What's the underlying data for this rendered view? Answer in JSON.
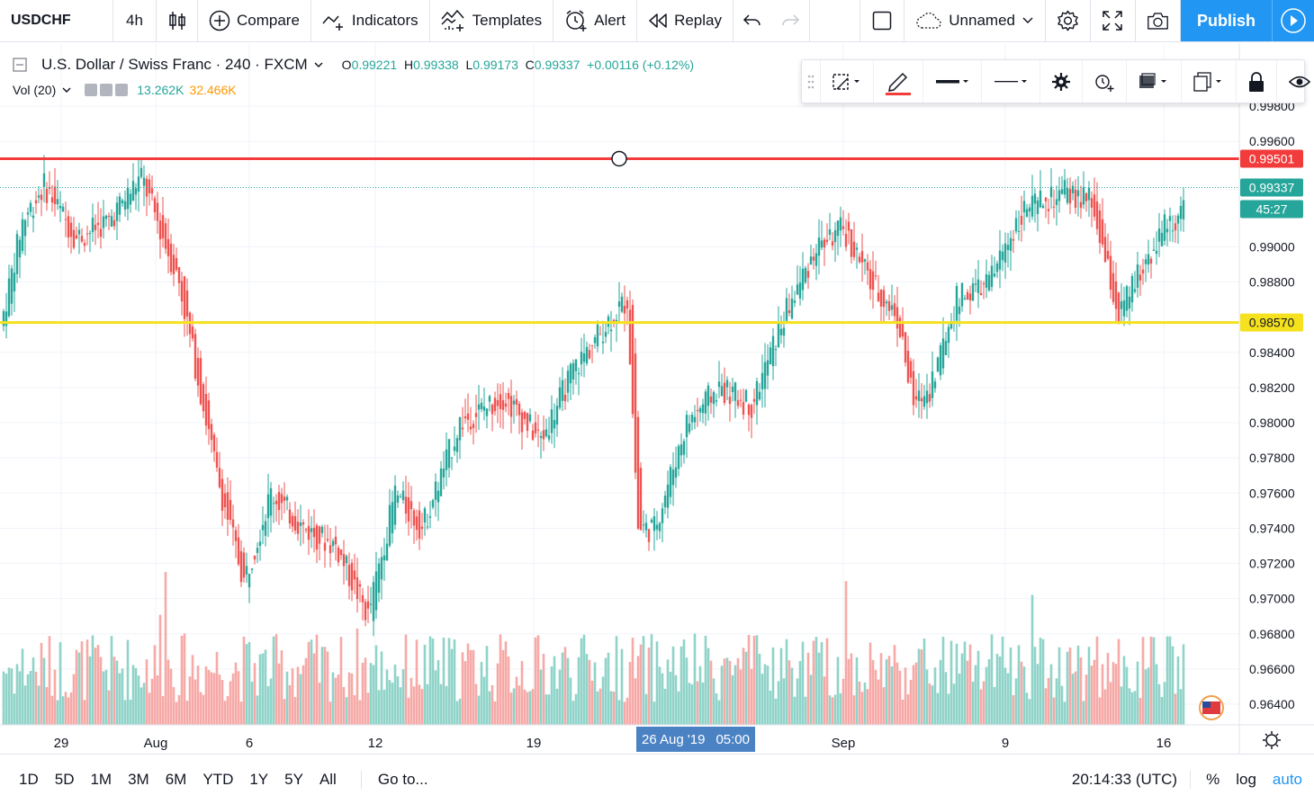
{
  "toolbar": {
    "symbol": "USDCHF",
    "interval": "4h",
    "compare": "Compare",
    "indicators": "Indicators",
    "templates": "Templates",
    "alert": "Alert",
    "replay": "Replay",
    "layout_name": "Unnamed",
    "publish": "Publish"
  },
  "legend": {
    "title": "U.S. Dollar / Swiss Franc · 240 · FXCM",
    "open": "0.99221",
    "high": "0.99338",
    "low": "0.99173",
    "close": "0.99337",
    "change": "+0.00116 (+0.12%)",
    "vol_label": "Vol (20)",
    "vol_value": "13.262K",
    "vol_ma": "32.466K"
  },
  "colors": {
    "up": "#26a69a",
    "down": "#ef5350",
    "vol_up": "#8fd3c9",
    "vol_down": "#f6a9a6",
    "resistance": "#f23c3c",
    "support": "#f5e11d",
    "accent": "#2196f3"
  },
  "chart_data": {
    "type": "candlestick",
    "symbol": "USDCHF",
    "timeframe": "240",
    "ylim": [
      0.9626,
      0.9999
    ],
    "y_ticks": [
      0.964,
      0.966,
      0.968,
      0.97,
      0.972,
      0.974,
      0.976,
      0.978,
      0.98,
      0.982,
      0.984,
      0.988,
      0.99,
      0.996,
      0.998
    ],
    "x_labels": [
      "29",
      "Aug",
      "6",
      "12",
      "19",
      "Sep",
      "9",
      "16"
    ],
    "price_labels": {
      "resistance": "0.99501",
      "current": "0.99337",
      "countdown": "45:27",
      "support": "0.98570"
    },
    "horizontal_lines": [
      {
        "name": "resistance",
        "value": 0.99501
      },
      {
        "name": "current",
        "value": 0.99337
      },
      {
        "name": "support",
        "value": 0.9857
      }
    ],
    "anchors": [
      [
        0,
        0.9855
      ],
      [
        8,
        0.9915
      ],
      [
        16,
        0.9935
      ],
      [
        28,
        0.9905
      ],
      [
        40,
        0.9915
      ],
      [
        52,
        0.994
      ],
      [
        66,
        0.988
      ],
      [
        80,
        0.977
      ],
      [
        90,
        0.971
      ],
      [
        100,
        0.976
      ],
      [
        112,
        0.974
      ],
      [
        124,
        0.973
      ],
      [
        136,
        0.969
      ],
      [
        146,
        0.976
      ],
      [
        156,
        0.974
      ],
      [
        170,
        0.98
      ],
      [
        186,
        0.9815
      ],
      [
        200,
        0.979
      ],
      [
        212,
        0.983
      ],
      [
        226,
        0.986
      ],
      [
        232,
        0.987
      ],
      [
        236,
        0.974
      ],
      [
        242,
        0.974
      ],
      [
        254,
        0.98
      ],
      [
        266,
        0.982
      ],
      [
        278,
        0.981
      ],
      [
        290,
        0.986
      ],
      [
        302,
        0.99
      ],
      [
        312,
        0.991
      ],
      [
        322,
        0.988
      ],
      [
        332,
        0.986
      ],
      [
        338,
        0.981
      ],
      [
        344,
        0.982
      ],
      [
        354,
        0.987
      ],
      [
        366,
        0.988
      ],
      [
        378,
        0.992
      ],
      [
        394,
        0.993
      ],
      [
        404,
        0.9925
      ],
      [
        414,
        0.986
      ],
      [
        420,
        0.988
      ],
      [
        430,
        0.991
      ],
      [
        438,
        0.992
      ]
    ],
    "volume_peaks": [
      {
        "i": 60,
        "v": 1.0
      },
      {
        "i": 312,
        "v": 0.94
      },
      {
        "i": 381,
        "v": 0.85
      },
      {
        "i": 58,
        "v": 0.72
      },
      {
        "i": 131,
        "v": 0.63
      }
    ]
  },
  "bottom": {
    "ranges": [
      "1D",
      "5D",
      "1M",
      "3M",
      "6M",
      "YTD",
      "1Y",
      "5Y",
      "All"
    ],
    "goto": "Go to...",
    "time": "20:14:33 (UTC)",
    "percent": "%",
    "log": "log",
    "auto": "auto",
    "crosshair_date": "26 Aug '19",
    "crosshair_time": "05:00"
  }
}
